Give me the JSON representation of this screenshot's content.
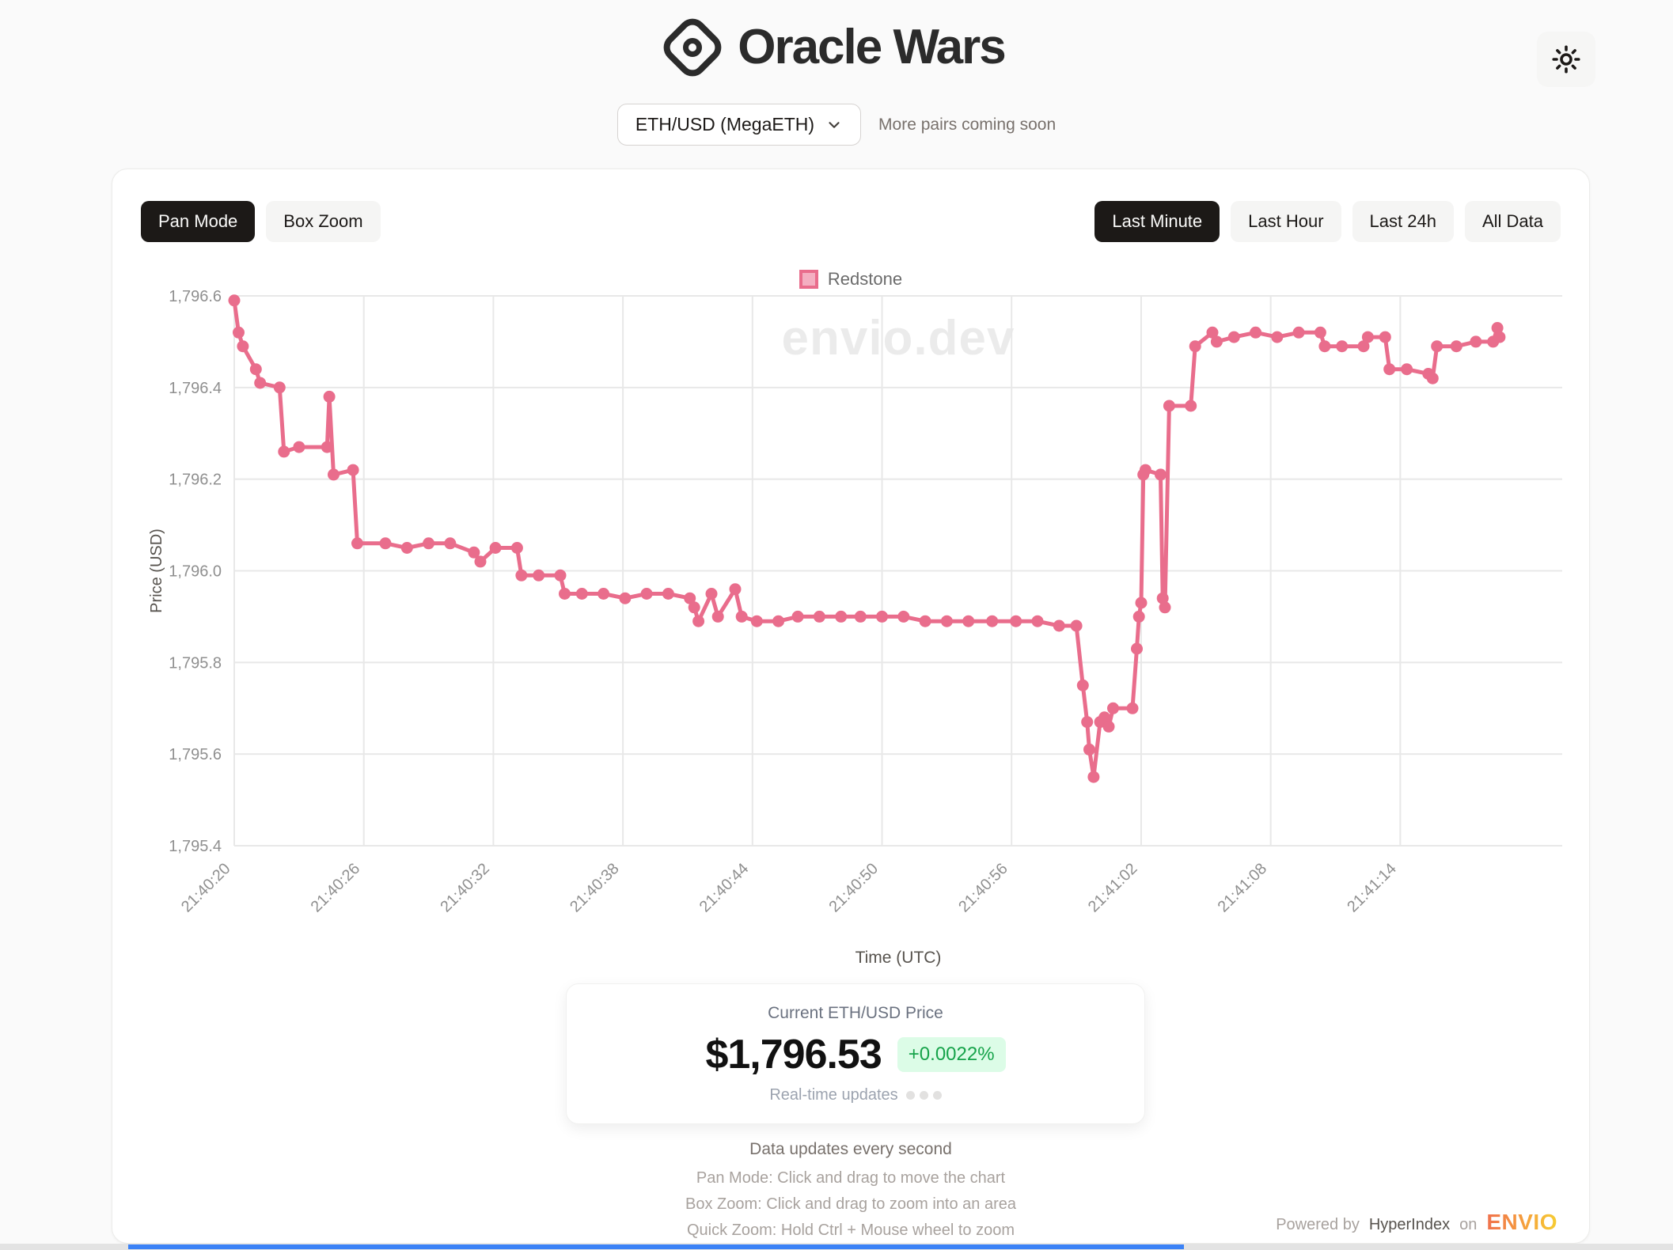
{
  "header": {
    "title": "Oracle Wars",
    "theme_toggle_icon": "sun"
  },
  "pair_selector": {
    "selected": "ETH/USD (MegaETH)",
    "note": "More pairs coming soon"
  },
  "toolbar": {
    "modes": [
      {
        "label": "Pan Mode",
        "active": true
      },
      {
        "label": "Box Zoom",
        "active": false
      }
    ],
    "ranges": [
      {
        "label": "Last Minute",
        "active": true
      },
      {
        "label": "Last Hour",
        "active": false
      },
      {
        "label": "Last 24h",
        "active": false
      },
      {
        "label": "All Data",
        "active": false
      }
    ]
  },
  "watermark": "envio.dev",
  "chart_data": {
    "type": "line",
    "title": "",
    "xlabel": "Time (UTC)",
    "ylabel": "Price (USD)",
    "legend": [
      {
        "name": "Redstone",
        "color": "#e96d8c",
        "fill": "#f4afc1"
      }
    ],
    "grid": true,
    "x_range_seconds": [
      0,
      61.5
    ],
    "x_base_time": "21:40:20",
    "x_ticks": [
      {
        "t": 0,
        "label": "21:40:20"
      },
      {
        "t": 6,
        "label": "21:40:26"
      },
      {
        "t": 12,
        "label": "21:40:32"
      },
      {
        "t": 18,
        "label": "21:40:38"
      },
      {
        "t": 24,
        "label": "21:40:44"
      },
      {
        "t": 30,
        "label": "21:40:50"
      },
      {
        "t": 36,
        "label": "21:40:56"
      },
      {
        "t": 42,
        "label": "21:41:02"
      },
      {
        "t": 48,
        "label": "21:41:08"
      },
      {
        "t": 54,
        "label": "21:41:14"
      }
    ],
    "y_range": [
      1795.4,
      1796.6
    ],
    "y_ticks": [
      {
        "v": 1796.6,
        "label": "1,796.6"
      },
      {
        "v": 1796.4,
        "label": "1,796.4"
      },
      {
        "v": 1796.2,
        "label": "1,796.2"
      },
      {
        "v": 1796.0,
        "label": "1,796.0"
      },
      {
        "v": 1795.8,
        "label": "1,795.8"
      },
      {
        "v": 1795.6,
        "label": "1,795.6"
      },
      {
        "v": 1795.4,
        "label": "1,795.4"
      }
    ],
    "series": [
      {
        "name": "Redstone",
        "color": "#e96d8c",
        "points": [
          [
            0.0,
            1796.59
          ],
          [
            0.2,
            1796.52
          ],
          [
            0.4,
            1796.49
          ],
          [
            1.0,
            1796.44
          ],
          [
            1.2,
            1796.41
          ],
          [
            2.1,
            1796.4
          ],
          [
            2.3,
            1796.26
          ],
          [
            3.0,
            1796.27
          ],
          [
            4.3,
            1796.27
          ],
          [
            4.4,
            1796.38
          ],
          [
            4.6,
            1796.21
          ],
          [
            5.5,
            1796.22
          ],
          [
            5.7,
            1796.06
          ],
          [
            7.0,
            1796.06
          ],
          [
            8.0,
            1796.05
          ],
          [
            9.0,
            1796.06
          ],
          [
            10.0,
            1796.06
          ],
          [
            11.1,
            1796.04
          ],
          [
            11.4,
            1796.02
          ],
          [
            12.1,
            1796.05
          ],
          [
            13.1,
            1796.05
          ],
          [
            13.3,
            1795.99
          ],
          [
            14.1,
            1795.99
          ],
          [
            15.1,
            1795.99
          ],
          [
            15.3,
            1795.95
          ],
          [
            16.1,
            1795.95
          ],
          [
            17.1,
            1795.95
          ],
          [
            18.1,
            1795.94
          ],
          [
            19.1,
            1795.95
          ],
          [
            20.1,
            1795.95
          ],
          [
            21.1,
            1795.94
          ],
          [
            21.3,
            1795.92
          ],
          [
            21.5,
            1795.89
          ],
          [
            22.1,
            1795.95
          ],
          [
            22.4,
            1795.9
          ],
          [
            23.2,
            1795.96
          ],
          [
            23.5,
            1795.9
          ],
          [
            24.2,
            1795.89
          ],
          [
            25.2,
            1795.89
          ],
          [
            26.1,
            1795.9
          ],
          [
            27.1,
            1795.9
          ],
          [
            28.1,
            1795.9
          ],
          [
            29.0,
            1795.9
          ],
          [
            30.0,
            1795.9
          ],
          [
            31.0,
            1795.9
          ],
          [
            32.0,
            1795.89
          ],
          [
            33.0,
            1795.89
          ],
          [
            34.0,
            1795.89
          ],
          [
            35.1,
            1795.89
          ],
          [
            36.2,
            1795.89
          ],
          [
            37.2,
            1795.89
          ],
          [
            38.2,
            1795.88
          ],
          [
            39.0,
            1795.88
          ],
          [
            39.3,
            1795.75
          ],
          [
            39.5,
            1795.67
          ],
          [
            39.6,
            1795.61
          ],
          [
            39.8,
            1795.55
          ],
          [
            40.1,
            1795.67
          ],
          [
            40.3,
            1795.68
          ],
          [
            40.5,
            1795.66
          ],
          [
            40.7,
            1795.7
          ],
          [
            41.6,
            1795.7
          ],
          [
            41.8,
            1795.83
          ],
          [
            41.9,
            1795.9
          ],
          [
            42.0,
            1795.93
          ],
          [
            42.1,
            1796.21
          ],
          [
            42.2,
            1796.22
          ],
          [
            42.9,
            1796.21
          ],
          [
            43.0,
            1795.94
          ],
          [
            43.1,
            1795.92
          ],
          [
            43.3,
            1796.36
          ],
          [
            44.3,
            1796.36
          ],
          [
            44.5,
            1796.49
          ],
          [
            45.3,
            1796.52
          ],
          [
            45.5,
            1796.5
          ],
          [
            46.3,
            1796.51
          ],
          [
            47.3,
            1796.52
          ],
          [
            48.3,
            1796.51
          ],
          [
            49.3,
            1796.52
          ],
          [
            50.3,
            1796.52
          ],
          [
            50.5,
            1796.49
          ],
          [
            51.3,
            1796.49
          ],
          [
            52.3,
            1796.49
          ],
          [
            52.5,
            1796.51
          ],
          [
            53.3,
            1796.51
          ],
          [
            53.5,
            1796.44
          ],
          [
            54.3,
            1796.44
          ],
          [
            55.3,
            1796.43
          ],
          [
            55.5,
            1796.42
          ],
          [
            55.7,
            1796.49
          ],
          [
            56.6,
            1796.49
          ],
          [
            57.5,
            1796.5
          ],
          [
            58.3,
            1796.5
          ],
          [
            58.5,
            1796.53
          ],
          [
            58.6,
            1796.51
          ]
        ]
      }
    ]
  },
  "price_card": {
    "label": "Current ETH/USD Price",
    "value": "$1,796.53",
    "change": "+0.0022%",
    "change_color": "#16a34a",
    "realtime_label": "Real-time updates"
  },
  "help": {
    "title": "Data updates every second",
    "lines": [
      "Pan Mode: Click and drag to move the chart",
      "Box Zoom: Click and drag to zoom into an area",
      "Quick Zoom: Hold Ctrl + Mouse wheel to zoom"
    ]
  },
  "footer": {
    "powered_by": "Powered by",
    "indexer": "HyperIndex",
    "on": "on",
    "brand": "ENVIO"
  },
  "colors": {
    "accent_pink": "#e96d8c",
    "accent_pink_light": "#f4afc1",
    "active_button_bg": "#1c1917",
    "badge_green_bg": "#dcfce7",
    "badge_green_text": "#16a34a",
    "bottom_bar_blue": "#3b82f6"
  }
}
